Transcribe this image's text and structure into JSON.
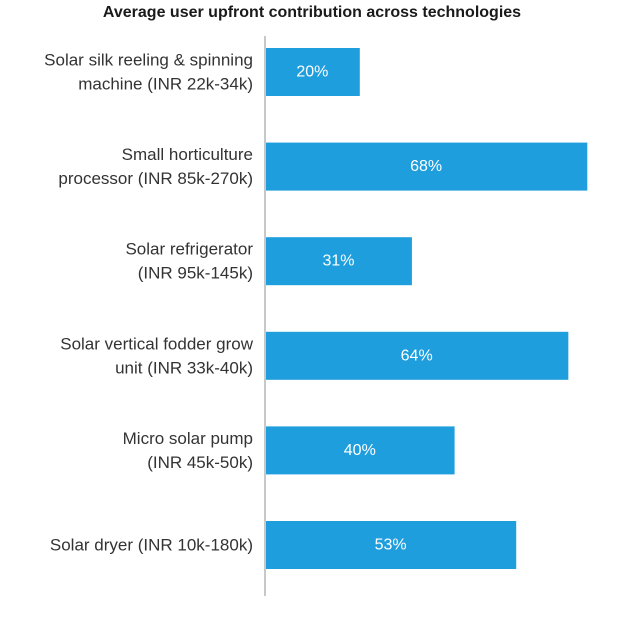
{
  "chart_data": {
    "type": "bar",
    "orientation": "horizontal",
    "title": "Average user upfront contribution across technologies",
    "categories": [
      [
        "Solar silk reeling & spinning",
        "machine (INR 22k-34k)"
      ],
      [
        "Small horticulture",
        "processor (INR 85k-270k)"
      ],
      [
        "Solar refrigerator",
        "(INR 95k-145k)"
      ],
      [
        "Solar vertical fodder grow",
        "unit (INR 33k-40k)"
      ],
      [
        "Micro solar pump",
        "(INR 45k-50k)"
      ],
      [
        "Solar dryer (INR 10k-180k)"
      ]
    ],
    "values": [
      20,
      68,
      31,
      64,
      40,
      53
    ],
    "data_labels": [
      "20%",
      "68%",
      "31%",
      "64%",
      "40%",
      "53%"
    ],
    "xlim": [
      0,
      73
    ],
    "bar_color": "#1f9ede",
    "axis_color": "#c8c8c8",
    "grid": false,
    "legend": "none"
  }
}
